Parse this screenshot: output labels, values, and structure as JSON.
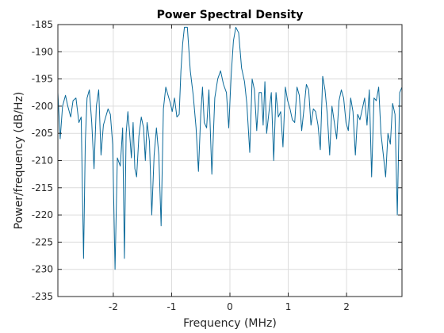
{
  "chart_data": {
    "type": "line",
    "title": "Power Spectral Density",
    "xlabel": "Frequency (MHz)",
    "ylabel": "Power/frequency (dB/Hz)",
    "xlim": [
      -2.95,
      2.95
    ],
    "ylim": [
      -235,
      -185
    ],
    "grid": true,
    "x_ticks": [
      -2,
      -1,
      0,
      1,
      2
    ],
    "y_ticks": [
      -235,
      -230,
      -225,
      -220,
      -215,
      -210,
      -205,
      -200,
      -195,
      -190,
      -185
    ],
    "colors": {
      "series": "#0b6a9a",
      "axes": "#262626",
      "grid": "#dcdcdc"
    },
    "series": [
      {
        "x": [
          -2.95,
          -2.91,
          -2.87,
          -2.82,
          -2.78,
          -2.73,
          -2.69,
          -2.64,
          -2.59,
          -2.55,
          -2.51,
          -2.48,
          -2.45,
          -2.41,
          -2.37,
          -2.33,
          -2.29,
          -2.25,
          -2.21,
          -2.17,
          -2.13,
          -2.09,
          -2.05,
          -2.01,
          -1.97,
          -1.93,
          -1.88,
          -1.84,
          -1.81,
          -1.78,
          -1.75,
          -1.72,
          -1.69,
          -1.66,
          -1.63,
          -1.6,
          -1.56,
          -1.52,
          -1.48,
          -1.45,
          -1.42,
          -1.38,
          -1.34,
          -1.3,
          -1.26,
          -1.22,
          -1.18,
          -1.14,
          -1.1,
          -1.06,
          -1.02,
          -0.99,
          -0.95,
          -0.91,
          -0.87,
          -0.84,
          -0.81,
          -0.78,
          -0.73,
          -0.68,
          -0.63,
          -0.58,
          -0.54,
          -0.5,
          -0.47,
          -0.44,
          -0.4,
          -0.36,
          -0.31,
          -0.26,
          -0.21,
          -0.16,
          -0.11,
          -0.06,
          -0.02,
          0.02,
          0.06,
          0.1,
          0.15,
          0.2,
          0.25,
          0.29,
          0.34,
          0.38,
          0.42,
          0.46,
          0.5,
          0.54,
          0.57,
          0.6,
          0.63,
          0.67,
          0.71,
          0.75,
          0.79,
          0.83,
          0.87,
          0.91,
          0.95,
          0.99,
          1.03,
          1.07,
          1.11,
          1.15,
          1.19,
          1.23,
          1.27,
          1.31,
          1.35,
          1.39,
          1.43,
          1.47,
          1.51,
          1.55,
          1.59,
          1.63,
          1.67,
          1.71,
          1.75,
          1.79,
          1.83,
          1.87,
          1.91,
          1.95,
          1.99,
          2.03,
          2.07,
          2.11,
          2.15,
          2.19,
          2.23,
          2.27,
          2.31,
          2.35,
          2.39,
          2.43,
          2.47,
          2.51,
          2.55,
          2.59,
          2.63,
          2.67,
          2.71,
          2.75,
          2.79,
          2.83,
          2.87,
          2.91,
          2.95
        ],
        "y": [
          -197.5,
          -206,
          -200,
          -198,
          -200,
          -202,
          -199,
          -198.5,
          -203,
          -202,
          -228,
          -206.5,
          -198.5,
          -197,
          -203,
          -211.5,
          -200,
          -197,
          -209,
          -203.5,
          -202,
          -200.5,
          -201.5,
          -207,
          -230,
          -209.5,
          -211,
          -204,
          -228,
          -205,
          -201,
          -205,
          -209.5,
          -203,
          -211.5,
          -213,
          -205.5,
          -202,
          -204,
          -210,
          -203,
          -206.5,
          -220,
          -209,
          -204,
          -209,
          -222,
          -200.5,
          -196.5,
          -198,
          -199.5,
          -201,
          -198.5,
          -202,
          -201.5,
          -193.5,
          -188.5,
          -185.5,
          -185.5,
          -193.5,
          -198,
          -204,
          -212,
          -201.5,
          -196.5,
          -203,
          -204,
          -197,
          -212.5,
          -198.5,
          -195,
          -193.5,
          -196,
          -197.5,
          -204,
          -194.5,
          -188,
          -185.5,
          -186.5,
          -193,
          -195.5,
          -199.5,
          -208.5,
          -195,
          -197,
          -204.5,
          -197.5,
          -197.5,
          -203.5,
          -195.5,
          -205,
          -201,
          -197.5,
          -210,
          -197.5,
          -202,
          -201,
          -207.5,
          -196.5,
          -199,
          -200.5,
          -202.5,
          -203,
          -196.5,
          -198,
          -204.5,
          -200.5,
          -196,
          -197,
          -203.5,
          -200.5,
          -201,
          -203.5,
          -208,
          -194.5,
          -197,
          -201.5,
          -209,
          -200,
          -203,
          -206,
          -199,
          -197,
          -198.5,
          -203,
          -204.5,
          -198.5,
          -201,
          -209,
          -201.5,
          -202.5,
          -200.5,
          -198.5,
          -203.5,
          -197,
          -213,
          -198.5,
          -199,
          -196.5,
          -205,
          -209,
          -213,
          -205,
          -207,
          -199.5,
          -201.5,
          -220,
          -197.5,
          -196.5
        ]
      }
    ]
  }
}
